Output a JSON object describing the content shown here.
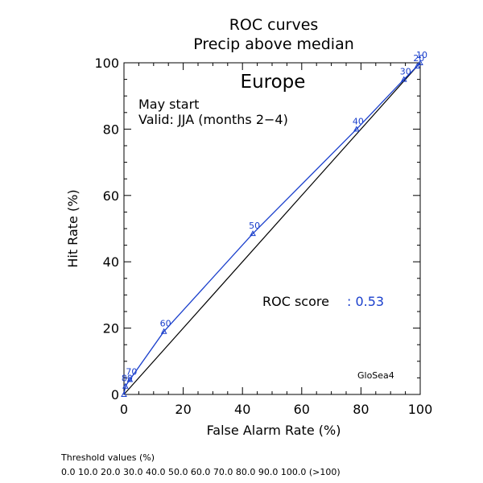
{
  "chart_data": {
    "type": "line",
    "title": "ROC curves",
    "subtitle": "Precip above median",
    "region": "Europe",
    "start_label": "May start",
    "valid_label": "Valid: JJA (months 2−4)",
    "xlabel": "False Alarm Rate (%)",
    "ylabel": "Hit Rate (%)",
    "xlim": [
      0,
      100
    ],
    "ylim": [
      0,
      100
    ],
    "xticks": [
      0,
      20,
      40,
      60,
      80,
      100
    ],
    "yticks": [
      0,
      20,
      40,
      60,
      80,
      100
    ],
    "grid": false,
    "diagonal": {
      "x": [
        0,
        100
      ],
      "y": [
        0,
        100
      ],
      "color": "#000000"
    },
    "series": [
      {
        "color": "#1a3fcc",
        "points": [
          {
            "label": "",
            "x": 0.0,
            "y": 0.0
          },
          {
            "label": "80",
            "x": 0.5,
            "y": 2.5
          },
          {
            "label": "70",
            "x": 2.0,
            "y": 4.5
          },
          {
            "label": "60",
            "x": 13.5,
            "y": 19.0
          },
          {
            "label": "50",
            "x": 43.5,
            "y": 48.5
          },
          {
            "label": "40",
            "x": 78.5,
            "y": 80.0
          },
          {
            "label": "30",
            "x": 94.5,
            "y": 95.0
          },
          {
            "label": "20",
            "x": 99.0,
            "y": 99.0
          },
          {
            "label": "10",
            "x": 100.0,
            "y": 100.0
          }
        ]
      }
    ],
    "roc_score_label": "ROC score",
    "roc_score_value": ": 0.53",
    "model_label": "GloSea4",
    "threshold_title": "Threshold values (%)",
    "threshold_values": "0.0 10.0 20.0 30.0 40.0 50.0 60.0 70.0 80.0 90.0 100.0 (>100)",
    "colors": {
      "axis": "#000000",
      "series": "#1a3fcc"
    }
  }
}
